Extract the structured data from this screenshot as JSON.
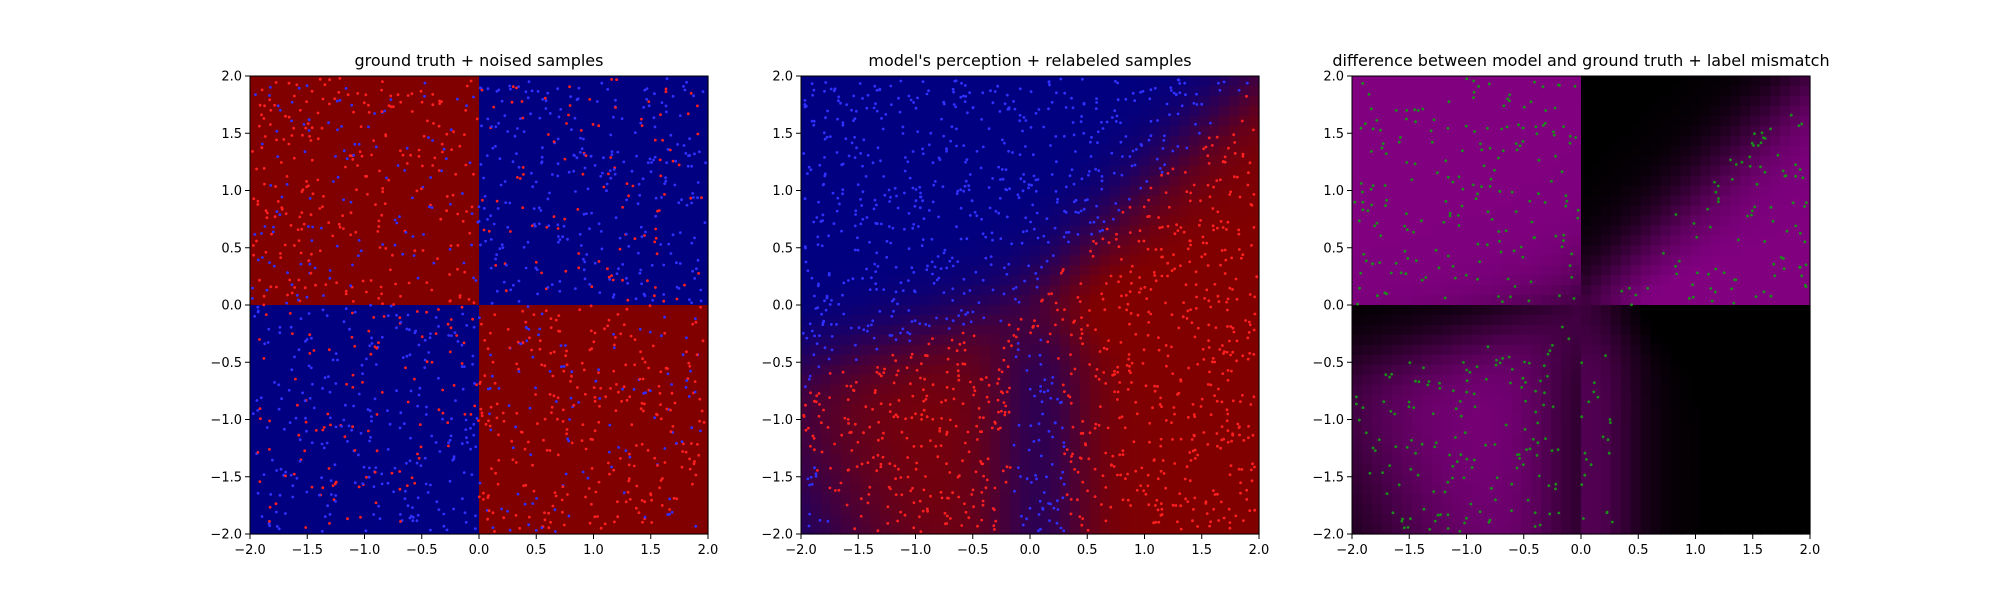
{
  "chart_data": [
    {
      "type": "heatmap",
      "title": "ground truth + noised samples",
      "xlim": [
        -2.0,
        2.0
      ],
      "ylim": [
        -2.0,
        2.0
      ],
      "xticks": [
        "−2.0",
        "−1.5",
        "−1.0",
        "−0.5",
        "0.0",
        "0.5",
        "1.0",
        "1.5",
        "2.0"
      ],
      "yticks": [
        "−2.0",
        "−1.5",
        "−1.0",
        "−0.5",
        "0.0",
        "0.5",
        "1.0",
        "1.5",
        "2.0"
      ],
      "field": "xor quadrants: red where x*y < 0, blue where x*y > 0",
      "colors": {
        "class_a": "#800000",
        "class_b": "#000080"
      },
      "samples": {
        "count": 1500,
        "colors": [
          "#ff2020",
          "#3030ff"
        ],
        "note_visible": false
      }
    },
    {
      "type": "heatmap",
      "title": "model's perception + relabeled samples",
      "xlim": [
        -2.0,
        2.0
      ],
      "ylim": [
        -2.0,
        2.0
      ],
      "xticks": [
        "−2.0",
        "−1.5",
        "−1.0",
        "−0.5",
        "0.0",
        "0.5",
        "1.0",
        "1.5",
        "2.0"
      ],
      "yticks": [
        "−2.0",
        "−1.5",
        "−1.0",
        "−0.5",
        "0.0",
        "0.5",
        "1.0",
        "1.5",
        "2.0"
      ],
      "colors": {
        "class_a": "#800000",
        "class_b": "#000080"
      },
      "samples": {
        "count": 1500,
        "colors": [
          "#ff2020",
          "#3030ff"
        ]
      }
    },
    {
      "type": "heatmap",
      "title": "difference between model and ground truth + label mismatch",
      "xlim": [
        -2.0,
        2.0
      ],
      "ylim": [
        -2.0,
        2.0
      ],
      "xticks": [
        "−2.0",
        "−1.5",
        "−1.0",
        "−0.5",
        "0.0",
        "0.5",
        "1.0",
        "1.5",
        "2.0"
      ],
      "yticks": [
        "−2.0",
        "−1.5",
        "−1.0",
        "−0.5",
        "0.0",
        "0.5",
        "1.0",
        "1.5",
        "2.0"
      ],
      "colors": {
        "mismatch": "#800080",
        "match": "#000000"
      },
      "samples": {
        "count": 450,
        "colors": [
          "#1a8f1a"
        ]
      }
    }
  ]
}
